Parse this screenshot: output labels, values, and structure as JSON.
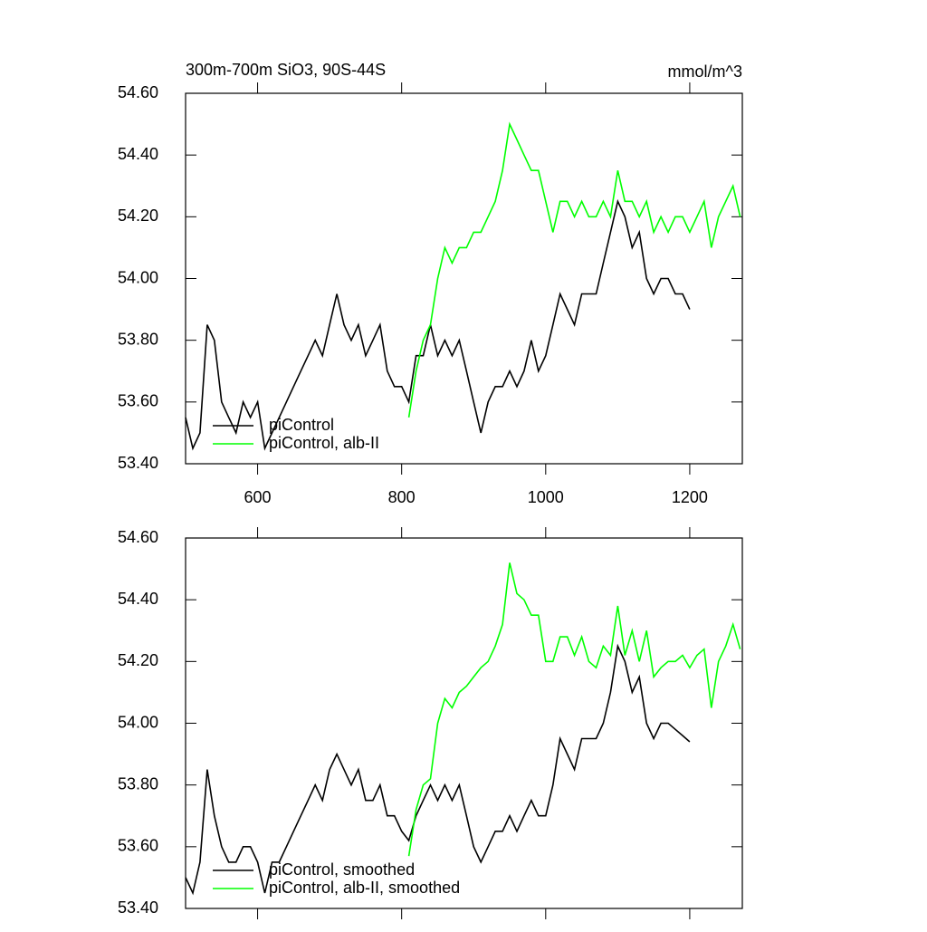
{
  "chart_data": [
    {
      "type": "line",
      "title": "300m-700m SiO3, 90S-44S",
      "units": "mmol/m^3",
      "xlim": [
        500,
        1273
      ],
      "xticks": [
        600,
        800,
        1000,
        1200
      ],
      "ylim": [
        53.4,
        54.6
      ],
      "yticks": [
        {
          "value": 53.4,
          "label": "53.40"
        },
        {
          "value": 53.6,
          "label": "53.60"
        },
        {
          "value": 53.8,
          "label": "53.80"
        },
        {
          "value": 54.0,
          "label": "54.00"
        },
        {
          "value": 54.2,
          "label": "54.20"
        },
        {
          "value": 54.4,
          "label": "54.40"
        },
        {
          "value": 54.6,
          "label": "54.60"
        }
      ],
      "xtick_labels": true,
      "legend": "lower left",
      "series": [
        {
          "name": "piControl",
          "color": "#000000",
          "x": [
            500,
            510,
            520,
            530,
            540,
            550,
            560,
            570,
            580,
            590,
            600,
            610,
            620,
            630,
            640,
            650,
            660,
            670,
            680,
            690,
            700,
            710,
            720,
            730,
            740,
            750,
            760,
            770,
            780,
            790,
            800,
            810,
            820,
            830,
            840,
            850,
            860,
            870,
            880,
            890,
            900,
            910,
            920,
            930,
            940,
            950,
            960,
            970,
            980,
            990,
            1000,
            1010,
            1020,
            1030,
            1040,
            1050,
            1060,
            1070,
            1080,
            1090,
            1100,
            1110,
            1120,
            1130,
            1140,
            1150,
            1160,
            1170,
            1180,
            1190,
            1200
          ],
          "values": [
            53.55,
            53.45,
            53.5,
            53.85,
            53.8,
            53.6,
            53.55,
            53.5,
            53.6,
            53.55,
            53.6,
            53.45,
            53.5,
            53.55,
            53.6,
            53.65,
            53.7,
            53.75,
            53.8,
            53.75,
            53.85,
            53.95,
            53.85,
            53.8,
            53.85,
            53.75,
            53.8,
            53.85,
            53.7,
            53.65,
            53.65,
            53.6,
            53.75,
            53.75,
            53.85,
            53.75,
            53.8,
            53.75,
            53.8,
            53.7,
            53.6,
            53.5,
            53.6,
            53.65,
            53.65,
            53.7,
            53.65,
            53.7,
            53.8,
            53.7,
            53.75,
            53.85,
            53.95,
            53.9,
            53.85,
            53.95,
            53.95,
            53.95,
            54.05,
            54.15,
            54.25,
            54.2,
            54.1,
            54.15,
            54.0,
            53.95,
            54.0,
            54.0,
            53.95,
            53.95,
            53.9
          ]
        },
        {
          "name": "piControl, alb-II",
          "color": "#00ff00",
          "x": [
            810,
            820,
            830,
            840,
            850,
            860,
            870,
            880,
            890,
            900,
            910,
            920,
            930,
            940,
            950,
            960,
            970,
            980,
            990,
            1000,
            1010,
            1020,
            1030,
            1040,
            1050,
            1060,
            1070,
            1080,
            1090,
            1100,
            1110,
            1120,
            1130,
            1140,
            1150,
            1160,
            1170,
            1180,
            1190,
            1200,
            1210,
            1220,
            1230,
            1240,
            1250,
            1260,
            1270
          ],
          "values": [
            53.55,
            53.7,
            53.8,
            53.85,
            54.0,
            54.1,
            54.05,
            54.1,
            54.1,
            54.15,
            54.15,
            54.2,
            54.25,
            54.35,
            54.5,
            54.45,
            54.4,
            54.35,
            54.35,
            54.25,
            54.15,
            54.25,
            54.25,
            54.2,
            54.25,
            54.2,
            54.2,
            54.25,
            54.2,
            54.35,
            54.25,
            54.25,
            54.2,
            54.25,
            54.15,
            54.2,
            54.15,
            54.2,
            54.2,
            54.15,
            54.2,
            54.25,
            54.1,
            54.2,
            54.25,
            54.3,
            54.2
          ]
        }
      ]
    },
    {
      "type": "line",
      "xlim": [
        500,
        1273
      ],
      "xticks": [
        600,
        800,
        1000,
        1200
      ],
      "ylim": [
        53.4,
        54.6
      ],
      "yticks": [
        {
          "value": 53.4,
          "label": "53.40"
        },
        {
          "value": 53.6,
          "label": "53.60"
        },
        {
          "value": 53.8,
          "label": "53.80"
        },
        {
          "value": 54.0,
          "label": "54.00"
        },
        {
          "value": 54.2,
          "label": "54.20"
        },
        {
          "value": 54.4,
          "label": "54.40"
        },
        {
          "value": 54.6,
          "label": "54.60"
        }
      ],
      "xtick_labels": false,
      "legend": "lower left",
      "series": [
        {
          "name": "piControl, smoothed",
          "color": "#000000",
          "x": [
            500,
            510,
            520,
            530,
            540,
            550,
            560,
            570,
            580,
            590,
            600,
            610,
            620,
            630,
            640,
            650,
            660,
            670,
            680,
            690,
            700,
            710,
            720,
            730,
            740,
            750,
            760,
            770,
            780,
            790,
            800,
            810,
            820,
            830,
            840,
            850,
            860,
            870,
            880,
            890,
            900,
            910,
            920,
            930,
            940,
            950,
            960,
            970,
            980,
            990,
            1000,
            1010,
            1020,
            1030,
            1040,
            1050,
            1060,
            1070,
            1080,
            1090,
            1100,
            1110,
            1120,
            1130,
            1140,
            1150,
            1160,
            1170,
            1180,
            1190,
            1200
          ],
          "values": [
            53.5,
            53.45,
            53.55,
            53.85,
            53.7,
            53.6,
            53.55,
            53.55,
            53.6,
            53.6,
            53.55,
            53.45,
            53.55,
            53.55,
            53.6,
            53.65,
            53.7,
            53.75,
            53.8,
            53.75,
            53.85,
            53.9,
            53.85,
            53.8,
            53.85,
            53.75,
            53.75,
            53.8,
            53.7,
            53.7,
            53.65,
            53.62,
            53.7,
            53.75,
            53.8,
            53.75,
            53.8,
            53.75,
            53.8,
            53.7,
            53.6,
            53.55,
            53.6,
            53.65,
            53.65,
            53.7,
            53.65,
            53.7,
            53.75,
            53.7,
            53.7,
            53.8,
            53.95,
            53.9,
            53.85,
            53.95,
            53.95,
            53.95,
            54.0,
            54.1,
            54.25,
            54.2,
            54.1,
            54.15,
            54.0,
            53.95,
            54.0,
            54.0,
            53.98,
            53.96,
            53.94
          ]
        },
        {
          "name": "piControl, alb-II, smoothed",
          "color": "#00ff00",
          "x": [
            810,
            820,
            830,
            840,
            850,
            860,
            870,
            880,
            890,
            900,
            910,
            920,
            930,
            940,
            950,
            960,
            970,
            980,
            990,
            1000,
            1010,
            1020,
            1030,
            1040,
            1050,
            1060,
            1070,
            1080,
            1090,
            1100,
            1110,
            1120,
            1130,
            1140,
            1150,
            1160,
            1170,
            1180,
            1190,
            1200,
            1210,
            1220,
            1230,
            1240,
            1250,
            1260,
            1270
          ],
          "values": [
            53.57,
            53.72,
            53.8,
            53.82,
            54.0,
            54.08,
            54.05,
            54.1,
            54.12,
            54.15,
            54.18,
            54.2,
            54.25,
            54.32,
            54.52,
            54.42,
            54.4,
            54.35,
            54.35,
            54.2,
            54.2,
            54.28,
            54.28,
            54.22,
            54.28,
            54.2,
            54.18,
            54.25,
            54.22,
            54.38,
            54.22,
            54.3,
            54.2,
            54.3,
            54.15,
            54.18,
            54.2,
            54.2,
            54.22,
            54.18,
            54.22,
            54.24,
            54.05,
            54.2,
            54.25,
            54.32,
            54.24
          ]
        }
      ]
    }
  ]
}
